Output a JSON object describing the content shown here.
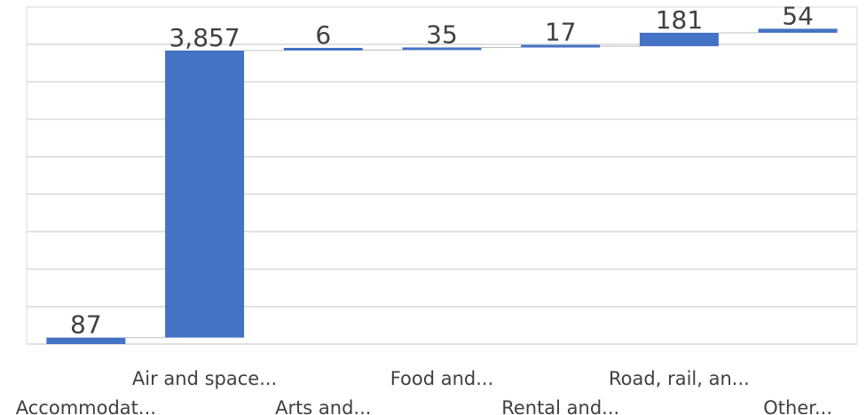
{
  "chart_data": {
    "type": "waterfall",
    "categories": [
      "Accommodat...",
      "Air and space...",
      "Arts and...",
      "Food and...",
      "Rental and...",
      "Road, rail, an...",
      "Other..."
    ],
    "values": [
      87,
      3857,
      6,
      35,
      17,
      181,
      54
    ],
    "data_labels": [
      "87",
      "3,857",
      "6",
      "35",
      "17",
      "181",
      "54"
    ],
    "bar_color": "#4472C4",
    "grid": true,
    "legend": "none"
  }
}
